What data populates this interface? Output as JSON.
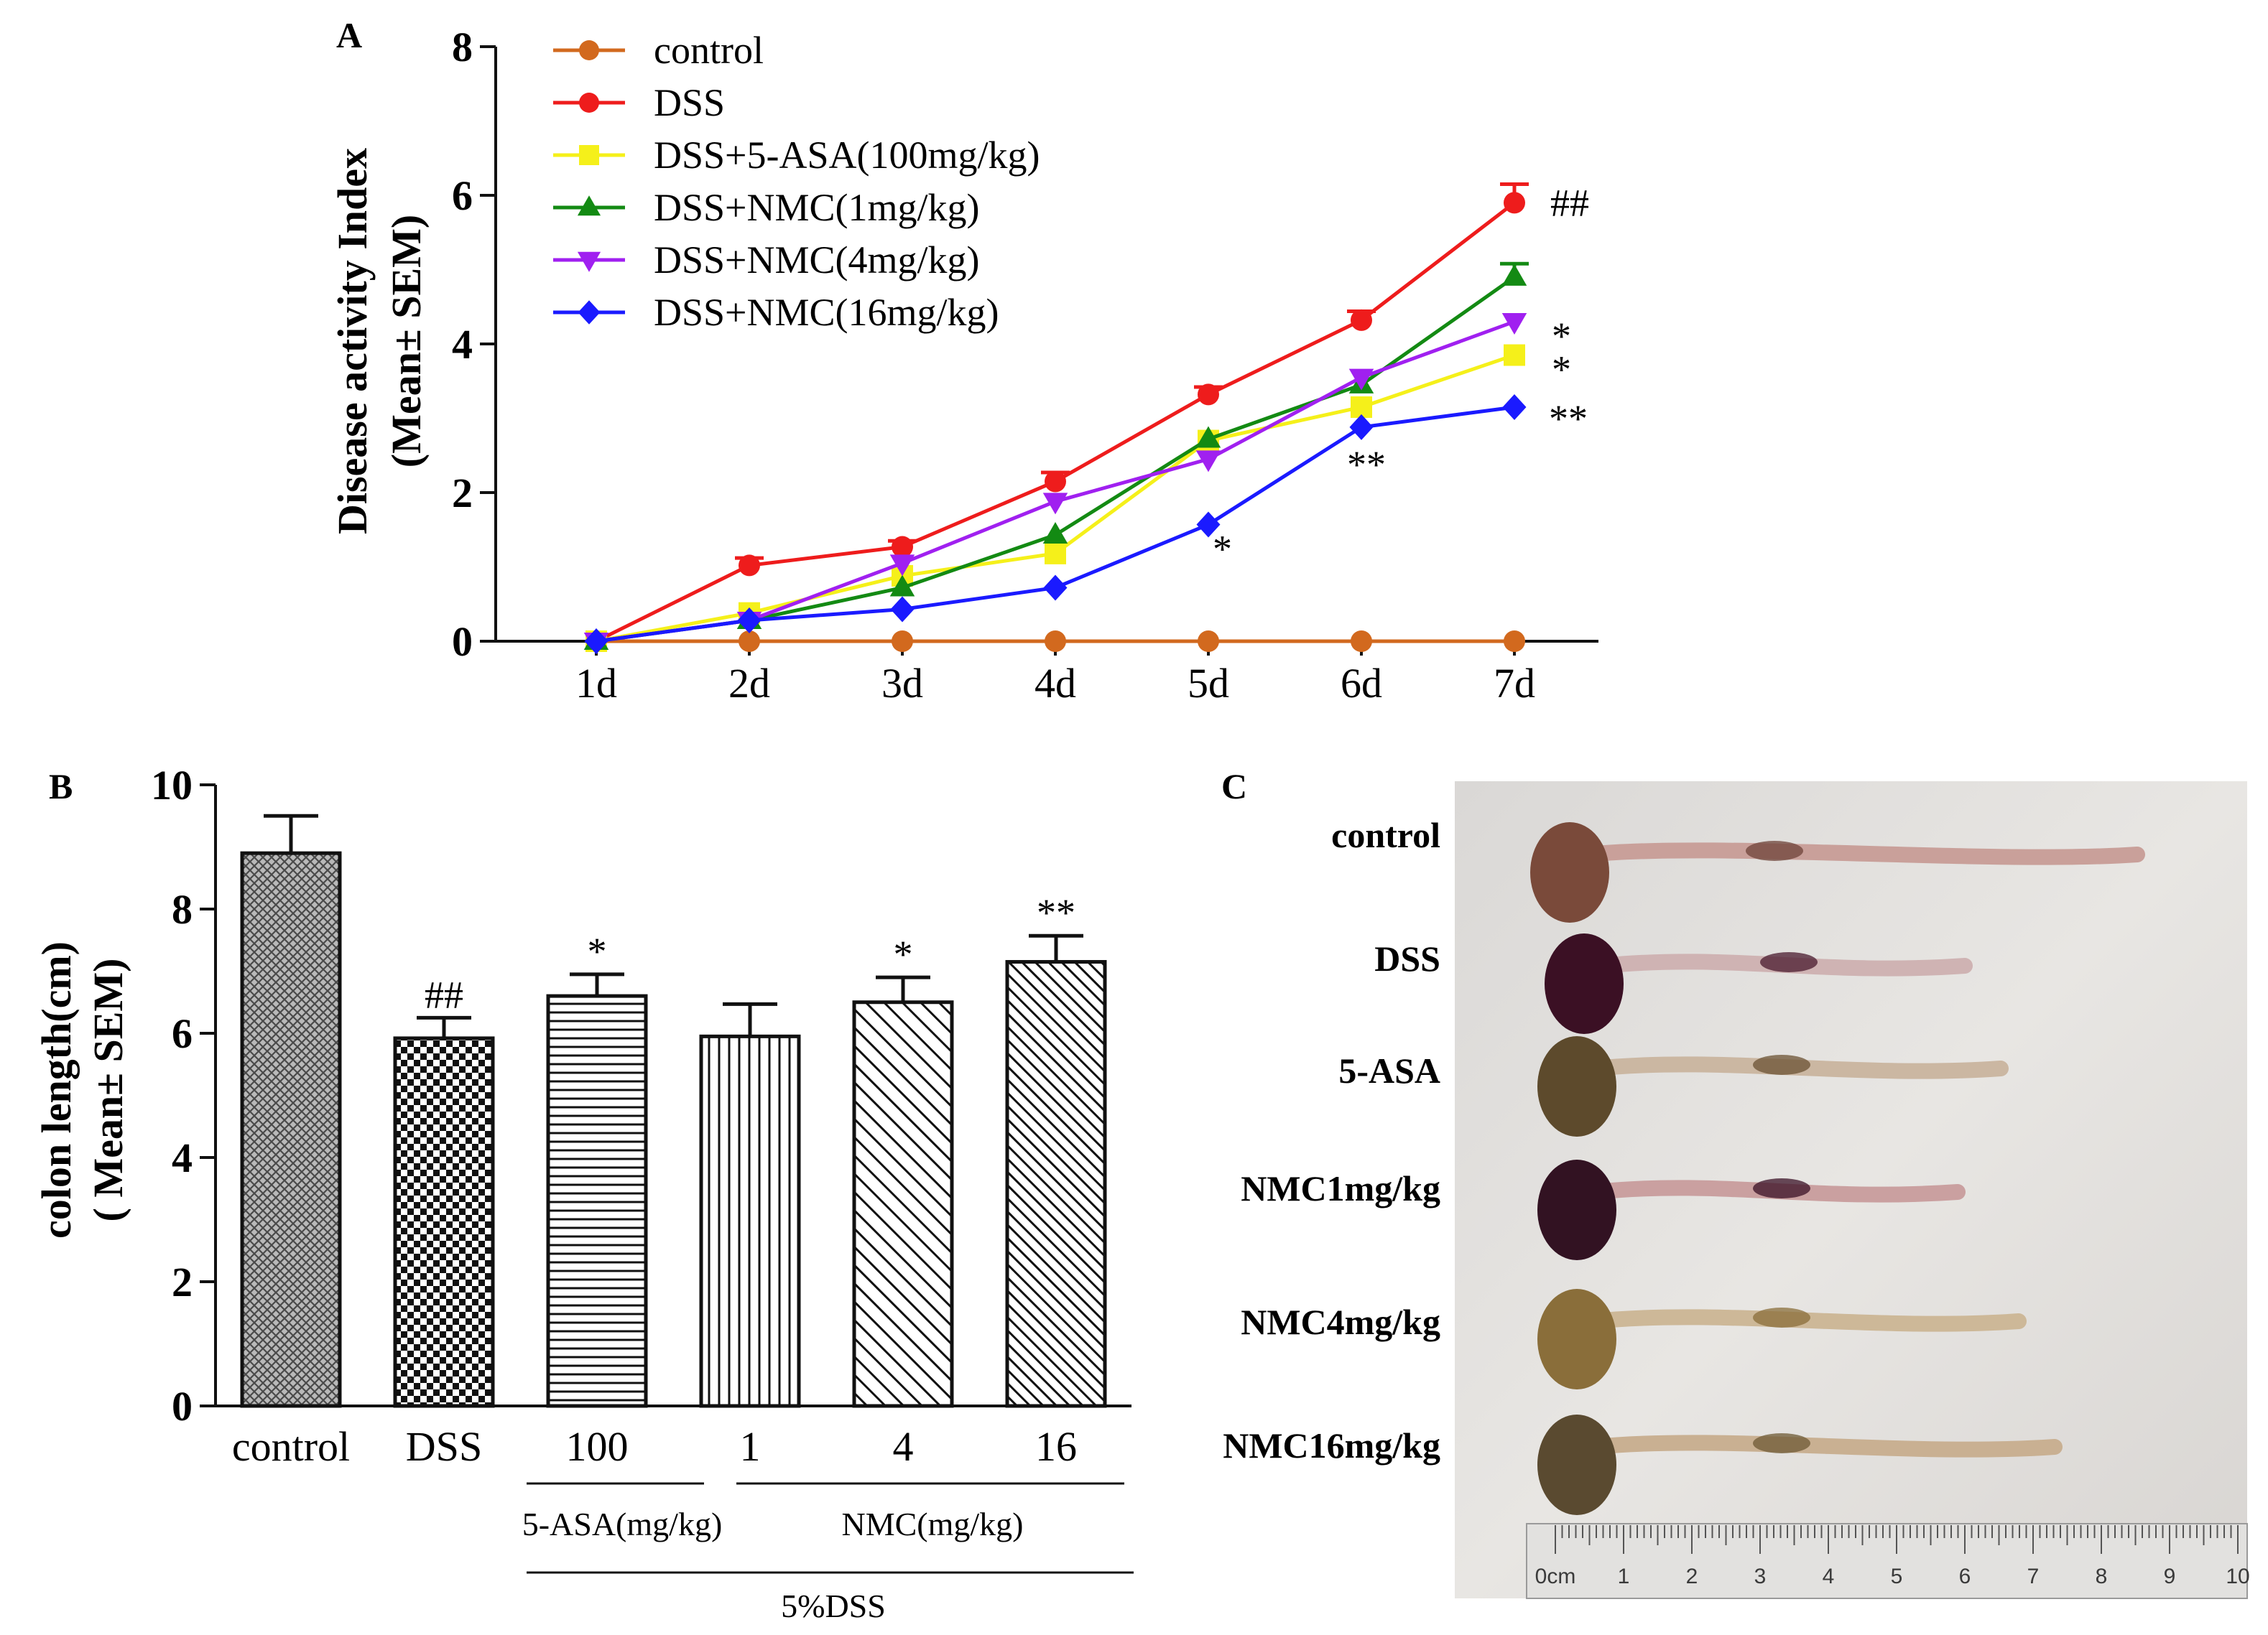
{
  "chart_data": [
    {
      "panel": "A",
      "type": "line",
      "ylabel_line1": "Disease activity Index",
      "ylabel_line2": "(Mean± SEM)",
      "xlabel": "",
      "categories": [
        "1d",
        "2d",
        "3d",
        "4d",
        "5d",
        "6d",
        "7d"
      ],
      "ylim": [
        0,
        8
      ],
      "yticks": [
        "0",
        "2",
        "4",
        "6",
        "8"
      ],
      "legend_position": "top-left",
      "series": [
        {
          "name": "control",
          "color": "#d2691e",
          "marker": "circle",
          "values": [
            0,
            0,
            0,
            0,
            0,
            0,
            0
          ],
          "err": [
            0,
            0,
            0,
            0,
            0,
            0,
            0
          ]
        },
        {
          "name": "DSS",
          "color": "#ee1c1c",
          "marker": "circle",
          "values": [
            0,
            1.02,
            1.27,
            2.15,
            3.32,
            4.32,
            5.9
          ],
          "err": [
            0,
            0.1,
            0.08,
            0.12,
            0.1,
            0.12,
            0.25
          ]
        },
        {
          "name": "DSS+5-ASA(100mg/kg)",
          "color": "#f5f01a",
          "marker": "square",
          "values": [
            0,
            0.38,
            0.88,
            1.18,
            2.7,
            3.15,
            3.85
          ],
          "err": [
            0,
            0,
            0,
            0,
            0,
            0,
            0
          ]
        },
        {
          "name": "DSS+NMC(1mg/kg)",
          "color": "#138a13",
          "marker": "triangle-up",
          "values": [
            0,
            0.28,
            0.72,
            1.43,
            2.72,
            3.45,
            4.9
          ],
          "err": [
            0,
            0,
            0,
            0,
            0,
            0,
            0.18
          ]
        },
        {
          "name": "DSS+NMC(4mg/kg)",
          "color": "#a020f0",
          "marker": "triangle-down",
          "values": [
            0,
            0.28,
            1.05,
            1.88,
            2.45,
            3.55,
            4.3
          ],
          "err": [
            0,
            0,
            0,
            0,
            0,
            0,
            0
          ]
        },
        {
          "name": "DSS+NMC(16mg/kg)",
          "color": "#1a1aff",
          "marker": "diamond",
          "values": [
            0,
            0.28,
            0.43,
            0.72,
            1.57,
            2.88,
            3.15
          ],
          "err": [
            0,
            0,
            0,
            0,
            0,
            0,
            0
          ]
        }
      ],
      "annotations": [
        {
          "text": "##",
          "x": "7d",
          "y": 5.9
        },
        {
          "text": "*",
          "x": "7d",
          "y": 4.3
        },
        {
          "text": "*",
          "x": "7d",
          "y": 3.85
        },
        {
          "text": "**",
          "x": "7d",
          "y": 3.15
        },
        {
          "text": "**",
          "x": "6d",
          "y": 2.88
        },
        {
          "text": "*",
          "x": "5d",
          "y": 1.57
        }
      ]
    },
    {
      "panel": "B",
      "type": "bar",
      "ylabel_line1": "colon length(cm)",
      "ylabel_line2": "( Mean± SEM)",
      "categories": [
        "control",
        "DSS",
        "100",
        "1",
        "4",
        "16"
      ],
      "values": [
        8.9,
        5.92,
        6.6,
        5.95,
        6.5,
        7.15
      ],
      "err": [
        0.6,
        0.33,
        0.35,
        0.52,
        0.4,
        0.42
      ],
      "sig": [
        "",
        "##",
        "*",
        "",
        "*",
        "**"
      ],
      "ylim": [
        0,
        10
      ],
      "yticks": [
        "0",
        "2",
        "4",
        "6",
        "8",
        "10"
      ],
      "group_labels": [
        "5-ASA(mg/kg)",
        "NMC(mg/kg)"
      ],
      "outer_group_label": "5%DSS"
    }
  ],
  "panel_letters": [
    "A",
    "B",
    "C"
  ],
  "photo": {
    "labels": [
      "control",
      "DSS",
      "5-ASA",
      "NMC1mg/kg",
      "NMC4mg/kg",
      "NMC16mg/kg"
    ],
    "ruler": [
      "0cm",
      "1",
      "2",
      "3",
      "4",
      "5",
      "6",
      "7",
      "8",
      "9",
      "10"
    ]
  }
}
